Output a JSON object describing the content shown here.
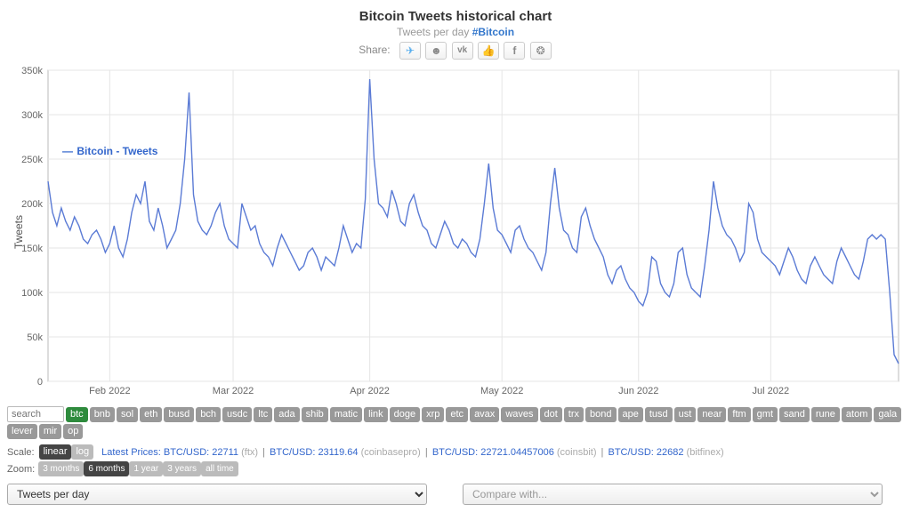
{
  "header": {
    "title": "Bitcoin Tweets historical chart",
    "subtitle_prefix": "Tweets per day ",
    "subtitle_link": "#Bitcoin",
    "share_label": "Share:"
  },
  "share_icons": [
    "twitter",
    "reddit",
    "vk",
    "like",
    "facebook",
    "weibo"
  ],
  "chart": {
    "type": "line",
    "legend_label": "Bitcoin - Tweets",
    "ylabel": "Tweets",
    "series_color": "#5b7bd5",
    "background_color": "#ffffff",
    "grid_color": "#e5e5e5",
    "axis_color": "#bbbbbb",
    "line_width": 1.4,
    "ylim": [
      0,
      350000
    ],
    "ytick_step": 50000,
    "ytick_labels": [
      "0",
      "50k",
      "100k",
      "150k",
      "200k",
      "250k",
      "300k",
      "350k"
    ],
    "x_month_ticks": [
      "Feb 2022",
      "Mar 2022",
      "Apr 2022",
      "May 2022",
      "Jun 2022",
      "Jul 2022"
    ],
    "x_month_positions": [
      14,
      42,
      73,
      103,
      134,
      164
    ],
    "n_points": 194,
    "values": [
      225000,
      190000,
      175000,
      195000,
      180000,
      170000,
      185000,
      175000,
      160000,
      155000,
      165000,
      170000,
      160000,
      145000,
      155000,
      175000,
      150000,
      140000,
      160000,
      190000,
      210000,
      200000,
      225000,
      180000,
      170000,
      195000,
      175000,
      150000,
      160000,
      170000,
      200000,
      250000,
      325000,
      210000,
      180000,
      170000,
      165000,
      175000,
      190000,
      200000,
      175000,
      160000,
      155000,
      150000,
      200000,
      185000,
      170000,
      175000,
      155000,
      145000,
      140000,
      130000,
      150000,
      165000,
      155000,
      145000,
      135000,
      125000,
      130000,
      145000,
      150000,
      140000,
      125000,
      140000,
      135000,
      130000,
      150000,
      175000,
      160000,
      145000,
      155000,
      150000,
      205000,
      340000,
      250000,
      200000,
      195000,
      185000,
      215000,
      200000,
      180000,
      175000,
      200000,
      210000,
      190000,
      175000,
      170000,
      155000,
      150000,
      165000,
      180000,
      170000,
      155000,
      150000,
      160000,
      155000,
      145000,
      140000,
      160000,
      200000,
      245000,
      195000,
      170000,
      165000,
      155000,
      145000,
      170000,
      175000,
      160000,
      150000,
      145000,
      135000,
      125000,
      145000,
      200000,
      240000,
      195000,
      170000,
      165000,
      150000,
      145000,
      185000,
      195000,
      175000,
      160000,
      150000,
      140000,
      120000,
      110000,
      125000,
      130000,
      115000,
      105000,
      100000,
      90000,
      85000,
      100000,
      140000,
      135000,
      110000,
      100000,
      95000,
      110000,
      145000,
      150000,
      120000,
      105000,
      100000,
      95000,
      130000,
      170000,
      225000,
      195000,
      175000,
      165000,
      160000,
      150000,
      135000,
      145000,
      200000,
      190000,
      160000,
      145000,
      140000,
      135000,
      130000,
      120000,
      135000,
      150000,
      140000,
      125000,
      115000,
      110000,
      130000,
      140000,
      130000,
      120000,
      115000,
      110000,
      135000,
      150000,
      140000,
      130000,
      120000,
      115000,
      135000,
      160000,
      165000,
      160000,
      165000,
      160000,
      100000,
      30000,
      20000
    ]
  },
  "coin_search_placeholder": "search",
  "coins": [
    "btc",
    "bnb",
    "sol",
    "eth",
    "busd",
    "bch",
    "usdc",
    "ltc",
    "ada",
    "shib",
    "matic",
    "link",
    "doge",
    "xrp",
    "etc",
    "avax",
    "waves",
    "dot",
    "trx",
    "bond",
    "ape",
    "tusd",
    "ust",
    "near",
    "ftm",
    "gmt",
    "sand",
    "rune",
    "atom",
    "gala",
    "lever",
    "mir",
    "op"
  ],
  "coin_active": "btc",
  "scale": {
    "label": "Scale:",
    "options": [
      "linear",
      "log"
    ],
    "active": "linear"
  },
  "prices_label": "Latest Prices:",
  "prices": [
    {
      "pair": "BTC/USD:",
      "value": "22711",
      "source": "(ftx)"
    },
    {
      "pair": "BTC/USD:",
      "value": "23119.64",
      "source": "(coinbasepro)"
    },
    {
      "pair": "BTC/USD:",
      "value": "22721.04457006",
      "source": "(coinsbit)"
    },
    {
      "pair": "BTC/USD:",
      "value": "22682",
      "source": "(bitfinex)"
    }
  ],
  "zoom": {
    "label": "Zoom:",
    "options": [
      "3 months",
      "6 months",
      "1 year",
      "3 years",
      "all time"
    ],
    "active": "6 months"
  },
  "select_main": "Tweets per day",
  "select_compare_placeholder": "Compare with..."
}
